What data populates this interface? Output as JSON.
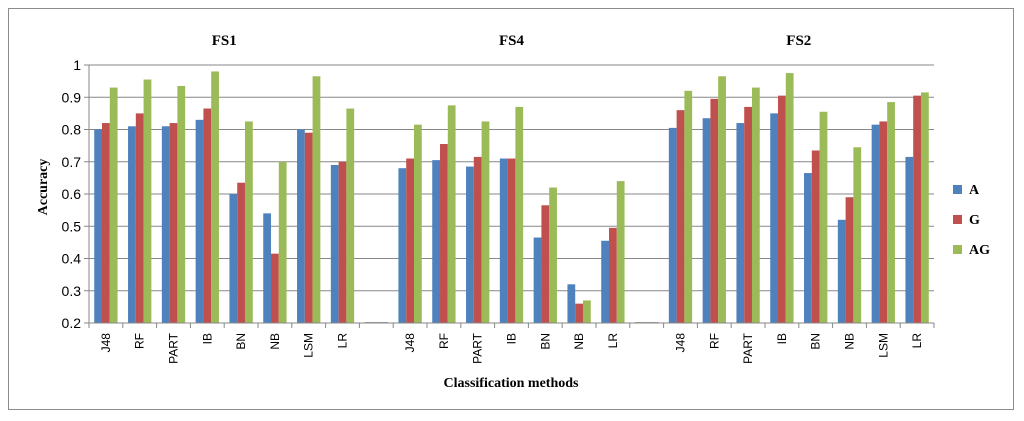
{
  "chart_data": {
    "type": "bar",
    "xlabel": "Classification methods",
    "ylabel": "Accuracy",
    "ylim": [
      0.2,
      1.0
    ],
    "yticks": [
      0.2,
      0.3,
      0.4,
      0.5,
      0.6,
      0.7,
      0.8,
      0.9,
      1
    ],
    "ytick_labels": [
      "0.2",
      "0.3",
      "0.4",
      "0.5",
      "0.6",
      "0.7",
      "0.8",
      "0.9",
      "1"
    ],
    "grid": "horizontal",
    "legend_position": "right",
    "series_names": [
      "A",
      "G",
      "AG"
    ],
    "colors": [
      "#4f81bd",
      "#c0504d",
      "#9bbb59"
    ],
    "groups": [
      {
        "title": "FS1",
        "categories": [
          "J48",
          "RF",
          "PART",
          "IB",
          "BN",
          "NB",
          "LSM",
          "LR"
        ],
        "series": [
          {
            "name": "A",
            "values": [
              0.8,
              0.81,
              0.81,
              0.83,
              0.6,
              0.54,
              0.8,
              0.69
            ]
          },
          {
            "name": "G",
            "values": [
              0.82,
              0.85,
              0.82,
              0.865,
              0.635,
              0.415,
              0.79,
              0.7
            ]
          },
          {
            "name": "AG",
            "values": [
              0.93,
              0.955,
              0.935,
              0.98,
              0.825,
              0.7,
              0.965,
              0.865
            ]
          }
        ]
      },
      {
        "title": "FS4",
        "categories": [
          "J48",
          "RF",
          "PART",
          "IB",
          "BN",
          "NB",
          "LR"
        ],
        "series": [
          {
            "name": "A",
            "values": [
              0.68,
              0.705,
              0.685,
              0.71,
              0.465,
              0.32,
              0.455
            ]
          },
          {
            "name": "G",
            "values": [
              0.71,
              0.755,
              0.715,
              0.71,
              0.565,
              0.26,
              0.495
            ]
          },
          {
            "name": "AG",
            "values": [
              0.815,
              0.875,
              0.825,
              0.87,
              0.62,
              0.27,
              0.64
            ]
          }
        ]
      },
      {
        "title": "FS2",
        "categories": [
          "J48",
          "RF",
          "PART",
          "IB",
          "BN",
          "NB",
          "LSM",
          "LR"
        ],
        "series": [
          {
            "name": "A",
            "values": [
              0.805,
              0.835,
              0.82,
              0.85,
              0.665,
              0.52,
              0.815,
              0.715
            ]
          },
          {
            "name": "G",
            "values": [
              0.86,
              0.895,
              0.87,
              0.905,
              0.735,
              0.59,
              0.825,
              0.905
            ]
          },
          {
            "name": "AG",
            "values": [
              0.92,
              0.965,
              0.93,
              0.975,
              0.855,
              0.745,
              0.885,
              0.915
            ]
          }
        ]
      }
    ]
  }
}
